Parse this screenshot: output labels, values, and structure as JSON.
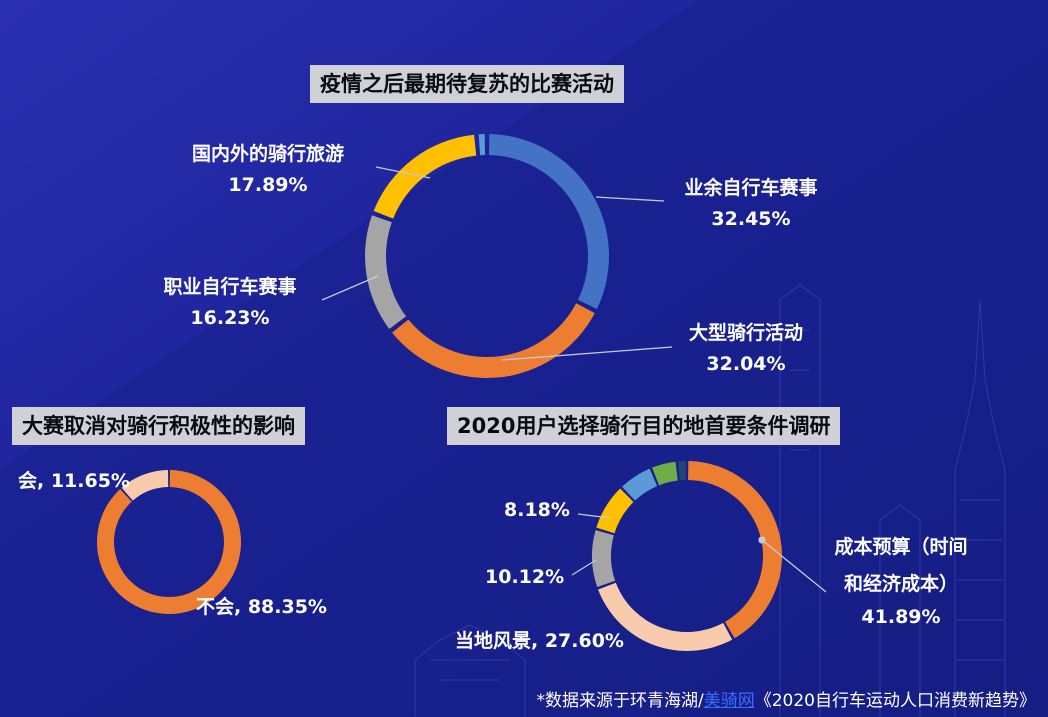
{
  "colors": {
    "blue": "#4472c4",
    "orange": "#ed7d31",
    "gray": "#a5a5a5",
    "yellow": "#ffc000",
    "light_blue": "#5b9bd5",
    "green": "#70ad47",
    "navy": "#264478",
    "peach": "#f8cbad"
  },
  "chart_data": [
    {
      "type": "pie",
      "title": "疫情之后最期待复苏的比赛活动",
      "series": [
        {
          "label": "业余自行车赛事",
          "value_text": "32.45%",
          "value": 32.45,
          "color": "#4472c4"
        },
        {
          "label": "大型骑行活动",
          "value_text": "32.04%",
          "value": 32.04,
          "color": "#ed7d31"
        },
        {
          "label": "职业自行车赛事",
          "value_text": "16.23%",
          "value": 16.23,
          "color": "#a5a5a5"
        },
        {
          "label": "国内外的骑行旅游",
          "value_text": "17.89%",
          "value": 17.89,
          "color": "#ffc000"
        },
        {
          "label": "",
          "value_text": "",
          "value": 1.39,
          "color": "#5b9bd5"
        }
      ]
    },
    {
      "type": "pie",
      "title": "大赛取消对骑行积极性的影响",
      "series": [
        {
          "label": "不会, 88.35%",
          "value": 88.35,
          "color": "#ed7d31"
        },
        {
          "label": "会, 11.65%",
          "value": 11.65,
          "color": "#f8cbad"
        }
      ]
    },
    {
      "type": "pie",
      "title": "2020用户选择骑行目的地首要条件调研",
      "series": [
        {
          "label": "成本预算（时间",
          "label2": "和经济成本）",
          "value_text": "41.89%",
          "value": 41.89,
          "color": "#ed7d31"
        },
        {
          "label": "当地风景, 27.60%",
          "value": 27.6,
          "color": "#f8cbad"
        },
        {
          "label": "10.12%",
          "value": 10.12,
          "color": "#a5a5a5"
        },
        {
          "label": "8.18%",
          "value": 8.18,
          "color": "#ffc000"
        },
        {
          "label": "",
          "value": 6.0,
          "color": "#5b9bd5"
        },
        {
          "label": "",
          "value": 4.5,
          "color": "#70ad47"
        },
        {
          "label": "",
          "value": 1.71,
          "color": "#264478"
        }
      ]
    }
  ],
  "footer": {
    "prefix": "*数据来源于环青海湖/",
    "link": "美骑网",
    "suffix": "《2020自行车运动人口消费新趋势》"
  }
}
